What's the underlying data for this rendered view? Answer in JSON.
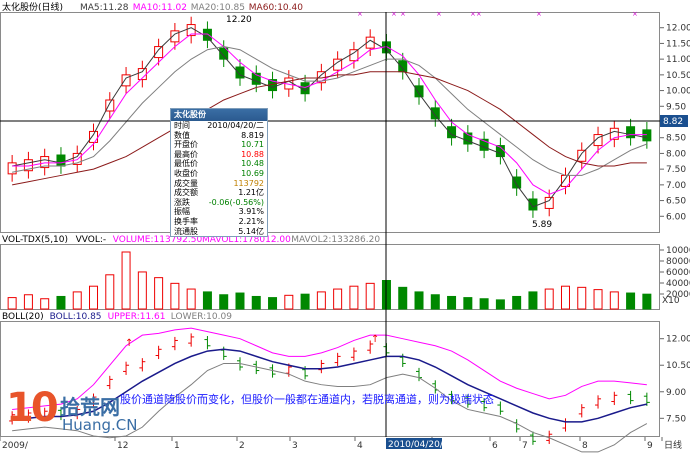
{
  "title": "太化股份(日线)",
  "ma_legend": [
    {
      "text": "MA5:11.28",
      "color": "#3a3a3a"
    },
    {
      "text": "MA10:11.02",
      "color": "#ff00ff"
    },
    {
      "text": "MA20:10.85",
      "color": "#7f7f7f"
    },
    {
      "text": "MA60:10.40",
      "color": "#8b1a1a"
    }
  ],
  "price_labels": {
    "high": "12.20",
    "low": "5.89",
    "current": "8.82"
  },
  "vol_legend": [
    {
      "text": "VOL-TDX(5,10)",
      "color": "#000000"
    },
    {
      "text": "VVOL:-",
      "color": "#000000"
    },
    {
      "text": "VOLUME:113792.50",
      "color": "#ff00ff"
    },
    {
      "text": "MAVOL1:178012.00",
      "color": "#ff00ff"
    },
    {
      "text": "MAVOL2:133286.20",
      "color": "#7f7f7f"
    }
  ],
  "vol_unit": "X10",
  "boll_legend": [
    {
      "text": "BOLL(20)",
      "color": "#000000"
    },
    {
      "text": "BOLL:10.85",
      "color": "#1a1a8b"
    },
    {
      "text": "UPPER:11.61",
      "color": "#ff00ff"
    },
    {
      "text": "LOWER:10.09",
      "color": "#7f7f7f"
    }
  ],
  "bottom_axis": [
    "2009/",
    "12",
    "1",
    "2",
    "3",
    "4",
    "5",
    "6",
    "7",
    "8",
    "9",
    "日线"
  ],
  "cursor_date": "2010/04/20/二",
  "banner": "股价通道随股价而变化，但股价一般都在通道内，若脱离通道，则为极端状态",
  "logo": {
    "num": "10",
    "cn": "拾荒网",
    "url": "Huang.CN"
  },
  "info_box": {
    "title": "太化股份",
    "rows": [
      {
        "k": "时间",
        "v": "2010/04/20/二",
        "color": "#000000"
      },
      {
        "k": "数值",
        "v": "8.819",
        "color": "#000000"
      },
      {
        "k": "开盘价",
        "v": "10.71",
        "color": "#008000"
      },
      {
        "k": "最高价",
        "v": "10.88",
        "color": "#ff0000"
      },
      {
        "k": "最低价",
        "v": "10.48",
        "color": "#008000"
      },
      {
        "k": "收盘价",
        "v": "10.69",
        "color": "#008000"
      },
      {
        "k": "成交量",
        "v": "113792",
        "color": "#c08000"
      },
      {
        "k": "成交额",
        "v": "1.21亿",
        "color": "#000000"
      },
      {
        "k": "涨跌",
        "v": "-0.06(-0.56%)",
        "color": "#008000"
      },
      {
        "k": "振幅",
        "v": "3.91%",
        "color": "#000000"
      },
      {
        "k": "换手率",
        "v": "2.21%",
        "color": "#000000"
      },
      {
        "k": "流通股",
        "v": "5.14亿",
        "color": "#000000"
      }
    ]
  },
  "chart_data": [
    {
      "type": "candlestick",
      "title": "太化股份(日线)",
      "ylim": [
        5.5,
        12.5
      ],
      "yticks": [
        6.0,
        6.5,
        7.0,
        7.5,
        8.0,
        8.5,
        9.0,
        9.5,
        10.0,
        10.5,
        11.0,
        11.5,
        12.0
      ],
      "series": [
        {
          "name": "MA5",
          "values": [
            7.6,
            7.7,
            7.8,
            7.7,
            7.9,
            8.6,
            9.6,
            10.4,
            10.6,
            11.3,
            11.8,
            12.0,
            11.7,
            11.1,
            10.5,
            10.3,
            10.1,
            10.3,
            10.0,
            10.5,
            10.9,
            11.2,
            11.6,
            11.3,
            10.7,
            9.9,
            9.2,
            8.6,
            8.4,
            8.2,
            8.0,
            7.0,
            6.3,
            6.5,
            7.2,
            8.0,
            8.5,
            8.7,
            8.6,
            8.5
          ]
        },
        {
          "name": "MA10",
          "values": [
            7.6,
            7.6,
            7.7,
            7.7,
            7.8,
            8.3,
            9.1,
            9.9,
            10.4,
            10.9,
            11.4,
            11.8,
            11.8,
            11.4,
            10.9,
            10.5,
            10.3,
            10.2,
            10.1,
            10.3,
            10.6,
            10.9,
            11.3,
            11.4,
            11.1,
            10.5,
            9.7,
            9.0,
            8.6,
            8.4,
            8.2,
            7.7,
            7.0,
            6.7,
            6.9,
            7.5,
            8.1,
            8.5,
            8.6,
            8.6
          ]
        },
        {
          "name": "MA20",
          "values": [
            7.4,
            7.5,
            7.6,
            7.6,
            7.7,
            7.9,
            8.4,
            9.0,
            9.6,
            10.1,
            10.6,
            11.0,
            11.3,
            11.4,
            11.3,
            11.0,
            10.7,
            10.5,
            10.3,
            10.3,
            10.4,
            10.6,
            10.8,
            11.0,
            11.0,
            10.8,
            10.4,
            9.9,
            9.4,
            9.0,
            8.6,
            8.2,
            7.8,
            7.5,
            7.3,
            7.3,
            7.5,
            7.8,
            8.1,
            8.3
          ]
        },
        {
          "name": "MA60",
          "values": [
            7.0,
            7.1,
            7.2,
            7.3,
            7.4,
            7.5,
            7.7,
            7.9,
            8.2,
            8.5,
            8.8,
            9.1,
            9.4,
            9.7,
            9.9,
            10.1,
            10.2,
            10.3,
            10.4,
            10.4,
            10.5,
            10.5,
            10.6,
            10.6,
            10.6,
            10.5,
            10.4,
            10.2,
            10.0,
            9.7,
            9.4,
            9.0,
            8.6,
            8.2,
            7.9,
            7.7,
            7.6,
            7.6,
            7.7,
            7.7
          ]
        }
      ]
    },
    {
      "type": "bar",
      "title": "VOL-TDX(5,10)",
      "yticks": [
        100000,
        80000,
        60000,
        40000,
        20000
      ],
      "values": [
        20,
        25,
        18,
        22,
        30,
        40,
        60,
        100,
        65,
        55,
        45,
        35,
        30,
        25,
        28,
        22,
        20,
        24,
        26,
        30,
        35,
        40,
        45,
        50,
        38,
        30,
        25,
        22,
        20,
        18,
        16,
        22,
        30,
        35,
        40,
        38,
        34,
        30,
        28,
        26
      ]
    },
    {
      "type": "line",
      "title": "BOLL(20)",
      "ylim": [
        6.5,
        13.0
      ],
      "yticks": [
        7.5,
        9.0,
        10.5,
        12.0
      ],
      "series": [
        {
          "name": "BOLL",
          "values": [
            7.4,
            7.5,
            7.6,
            7.6,
            7.7,
            7.9,
            8.4,
            9.0,
            9.6,
            10.1,
            10.6,
            11.0,
            11.3,
            11.4,
            11.3,
            11.0,
            10.7,
            10.5,
            10.3,
            10.3,
            10.4,
            10.6,
            10.8,
            11.0,
            11.0,
            10.8,
            10.4,
            9.9,
            9.4,
            9.0,
            8.6,
            8.2,
            7.8,
            7.5,
            7.3,
            7.3,
            7.5,
            7.8,
            8.1,
            8.3
          ]
        },
        {
          "name": "UPPER",
          "values": [
            8.0,
            8.1,
            8.2,
            8.3,
            8.6,
            9.4,
            10.5,
            11.6,
            12.2,
            12.3,
            12.5,
            12.6,
            12.4,
            12.2,
            12.0,
            11.6,
            11.2,
            11.0,
            11.0,
            11.2,
            11.5,
            11.9,
            12.2,
            12.2,
            12.0,
            11.8,
            11.6,
            11.3,
            10.8,
            10.2,
            9.6,
            9.2,
            8.9,
            8.6,
            8.8,
            9.3,
            9.6,
            9.6,
            9.5,
            9.4
          ]
        },
        {
          "name": "LOWER",
          "values": [
            6.8,
            6.9,
            7.0,
            6.9,
            6.8,
            6.5,
            6.4,
            6.5,
            7.0,
            7.9,
            8.7,
            9.4,
            10.2,
            10.6,
            10.6,
            10.4,
            10.2,
            10.0,
            9.6,
            9.4,
            9.3,
            9.3,
            9.4,
            9.8,
            10.0,
            9.8,
            9.2,
            8.5,
            8.0,
            7.8,
            7.6,
            7.2,
            6.7,
            6.4,
            6.0,
            5.6,
            5.6,
            6.0,
            6.7,
            7.2
          ]
        }
      ]
    }
  ]
}
